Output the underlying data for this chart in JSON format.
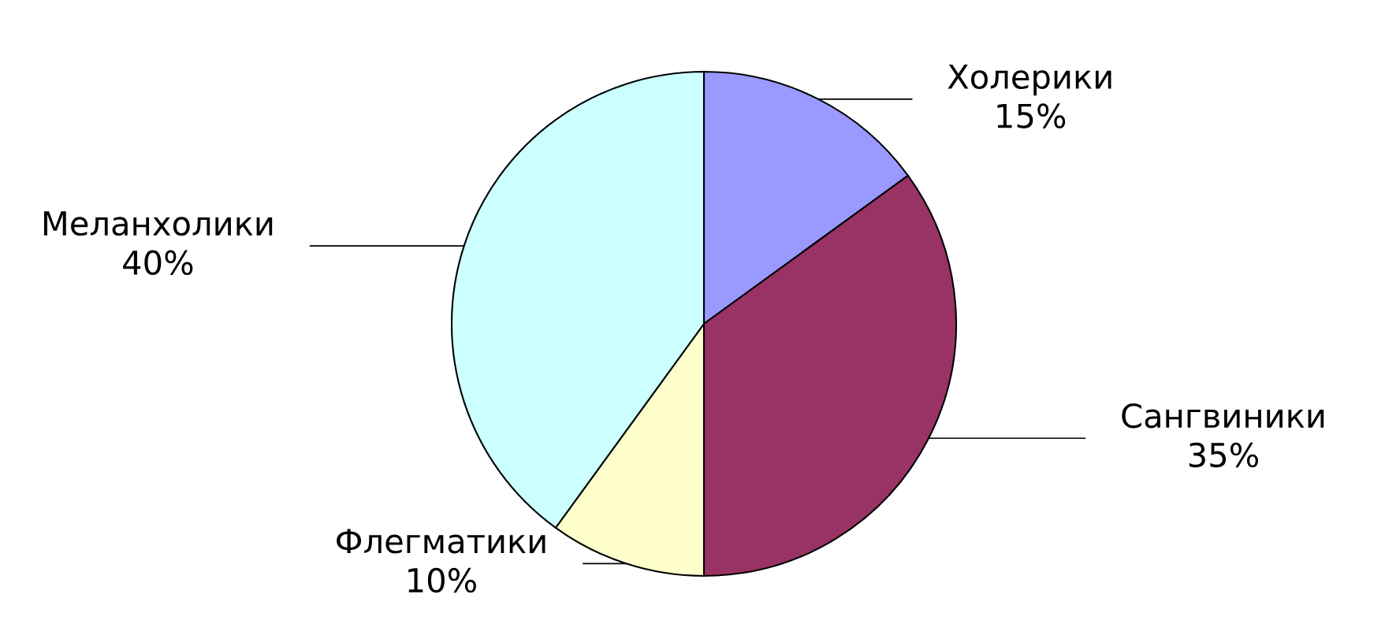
{
  "chart_data": {
    "type": "pie",
    "categories": [
      "Холерики",
      "Сангвиники",
      "Флегматики",
      "Меланхолики"
    ],
    "values": [
      15,
      35,
      10,
      40
    ],
    "colors": [
      "#9999ff",
      "#993366",
      "#ffffcc",
      "#ccffff"
    ],
    "value_labels": [
      "15%",
      "35%",
      "10%",
      "40%"
    ]
  }
}
